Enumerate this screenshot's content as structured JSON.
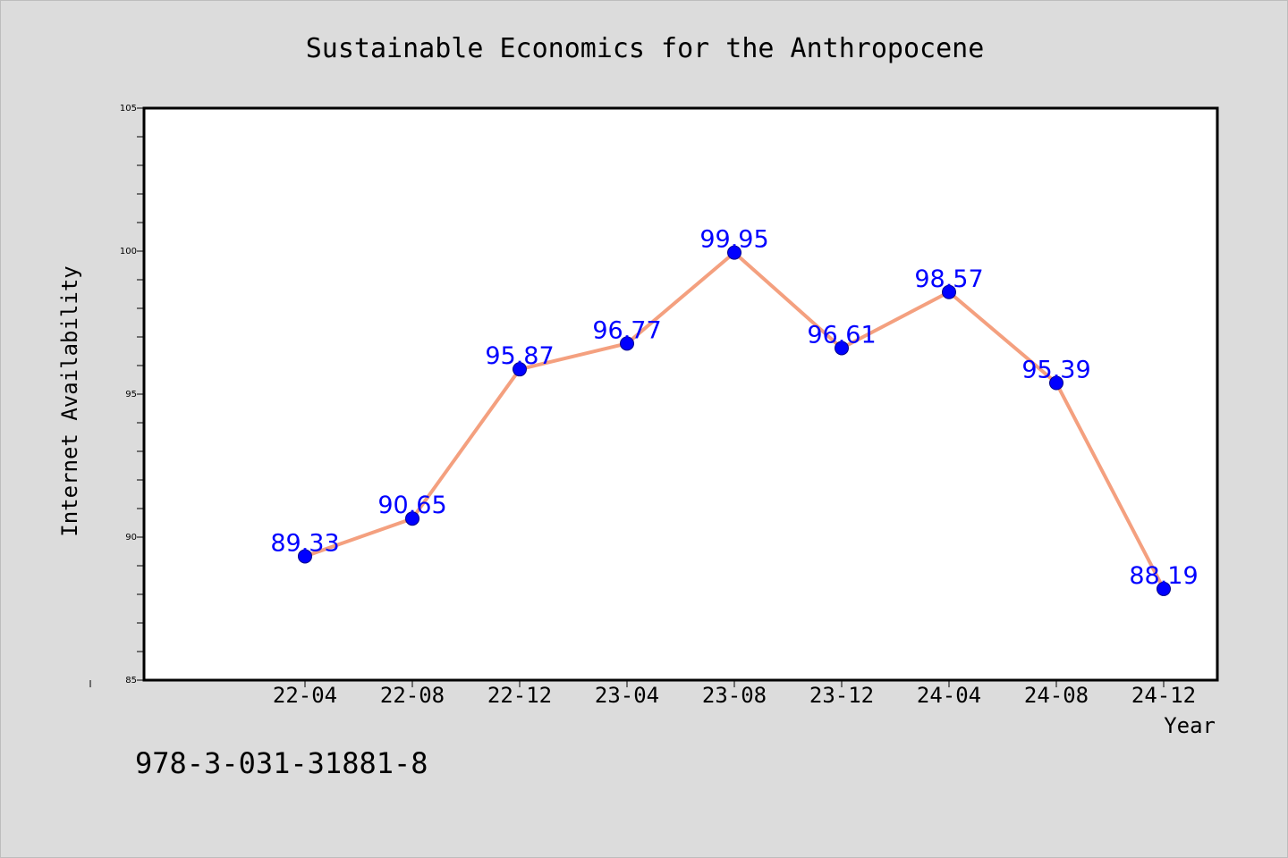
{
  "chart_data": {
    "type": "line",
    "title": "Sustainable Economics for the Anthropocene",
    "xlabel": "Year",
    "ylabel": "Internet Availability",
    "categories": [
      "22-04",
      "22-08",
      "22-12",
      "23-04",
      "23-08",
      "23-12",
      "24-04",
      "24-08",
      "24-12"
    ],
    "values": [
      89.33,
      90.65,
      95.87,
      96.77,
      99.95,
      96.61,
      98.57,
      95.39,
      88.19
    ],
    "data_labels": [
      "89.33",
      "90.65",
      "95.87",
      "96.77",
      "99.95",
      "96.61",
      "98.57",
      "95.39",
      "88.19"
    ],
    "ylim": [
      85,
      105
    ],
    "y_ticks": [
      85,
      90,
      95,
      100,
      105
    ],
    "y_minor_step": 1,
    "x_extra_minor_tick": true,
    "grid": false,
    "legend": "none",
    "line_color": "#f4a07f",
    "marker_color": "#0000ff",
    "label_color": "#0000ff",
    "plot_background": "#ffffff",
    "figure_background": "#dcdcdc"
  },
  "footer": {
    "isbn": "978-3-031-31881-8"
  }
}
